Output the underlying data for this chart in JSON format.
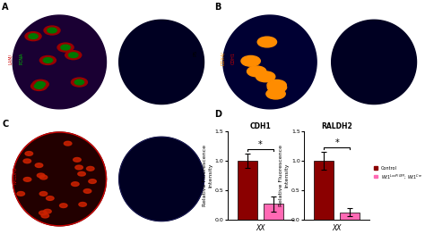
{
  "panel_label": "D",
  "charts": [
    {
      "title": "CDH1",
      "categories": [
        "XX"
      ],
      "control_mean": 1.0,
      "control_err": 0.12,
      "mutant_mean": 0.27,
      "mutant_err": 0.13,
      "ylim": [
        0,
        1.5
      ],
      "yticks": [
        0.0,
        0.5,
        1.0,
        1.5
      ]
    },
    {
      "title": "RALDH2",
      "categories": [
        "XX"
      ],
      "control_mean": 1.0,
      "control_err": 0.15,
      "mutant_mean": 0.13,
      "mutant_err": 0.07,
      "ylim": [
        0,
        1.5
      ],
      "yticks": [
        0.0,
        0.5,
        1.0,
        1.5
      ]
    }
  ],
  "control_color": "#8B0000",
  "mutant_color": "#FF69B4",
  "control_label": "Control",
  "mutant_label_italic": "Wt1^{LoxP/GFP}; Wt1^{Cre}",
  "ylabel": "Relative Fluorescence\nIntensity",
  "significance": "*",
  "bar_width": 0.3,
  "background_color": "#ffffff",
  "microscopy_bg": "#0a0a0a"
}
